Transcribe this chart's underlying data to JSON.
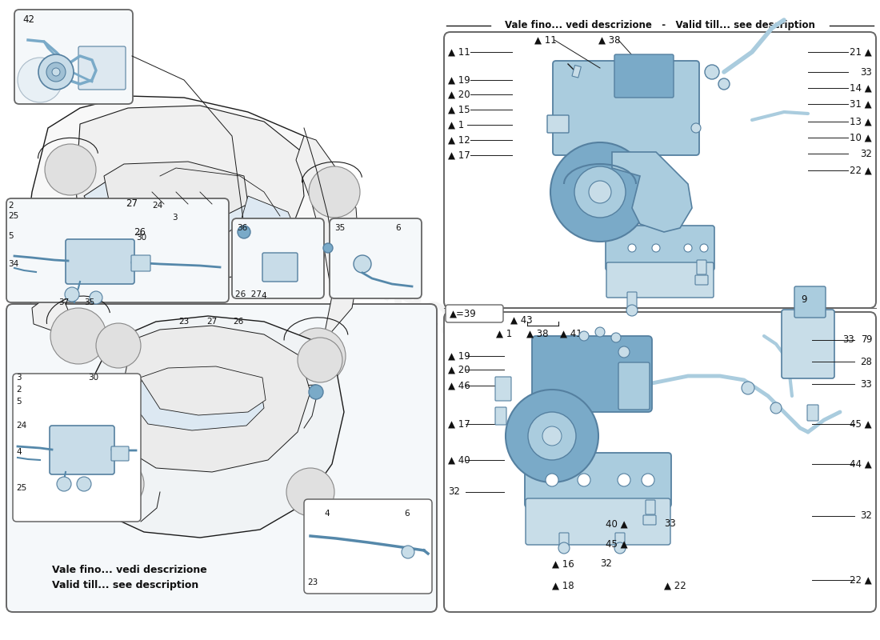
{
  "bg_color": "#ffffff",
  "figure_width": 11.0,
  "figure_height": 8.0,
  "dpi": 100,
  "top_right_banner": "Vale fino... vedi descrizione   -   Valid till... see description",
  "bottom_left_banner_line1": "Vale fino... vedi descrizione",
  "bottom_left_banner_line2": "Valid till... see description",
  "legend_box": "▲=39",
  "line_color": "#1a1a1a",
  "text_color": "#111111",
  "accent_color": "#7aaac8",
  "accent_dark": "#5580a0",
  "accent_light": "#aaccde",
  "accent_lighter": "#c8dde8",
  "box_ec": "#666666",
  "label_fs": 8.5,
  "small_fs": 7.5,
  "watermark": "Deinotecarsi.com"
}
